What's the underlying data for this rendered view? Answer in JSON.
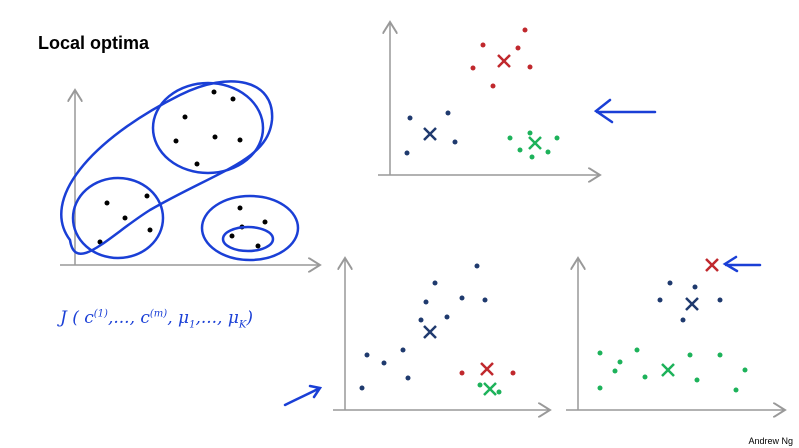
{
  "header": {
    "title": "Local optima"
  },
  "formula": {
    "segments": [
      {
        "text": "J ( c",
        "pos": "base"
      },
      {
        "text": "(1)",
        "pos": "sup"
      },
      {
        "text": ",..., c",
        "pos": "base"
      },
      {
        "text": "(m)",
        "pos": "sup"
      },
      {
        "text": ", μ",
        "pos": "base"
      },
      {
        "text": "1",
        "pos": "sub"
      },
      {
        "text": ",..., μ",
        "pos": "base"
      },
      {
        "text": "K",
        "pos": "sub"
      },
      {
        "text": ")",
        "pos": "base"
      }
    ]
  },
  "footer": {
    "author": "Andrew Ng"
  }
}
